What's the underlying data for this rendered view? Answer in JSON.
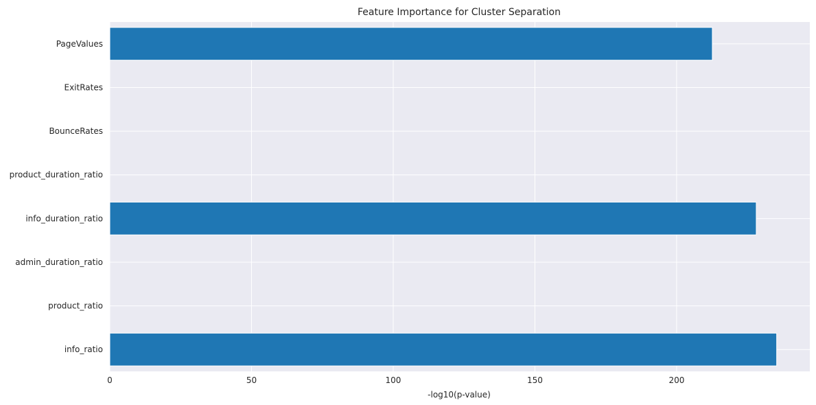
{
  "chart_data": {
    "type": "bar",
    "orientation": "horizontal",
    "title": "Feature Importance for Cluster Separation",
    "xlabel": "-log10(p-value)",
    "ylabel": "",
    "categories": [
      "info_ratio",
      "product_ratio",
      "admin_duration_ratio",
      "info_duration_ratio",
      "product_duration_ratio",
      "BounceRates",
      "ExitRates",
      "PageValues"
    ],
    "values": [
      235.3,
      0,
      0,
      228.1,
      0,
      0,
      0,
      212.6
    ],
    "xlim": [
      0,
      247
    ],
    "xticks": [
      0,
      50,
      100,
      150,
      200
    ],
    "grid": true,
    "colors": {
      "bar": "#1f77b4",
      "plot_background": "#eaeaf2",
      "grid": "#ffffff"
    }
  }
}
